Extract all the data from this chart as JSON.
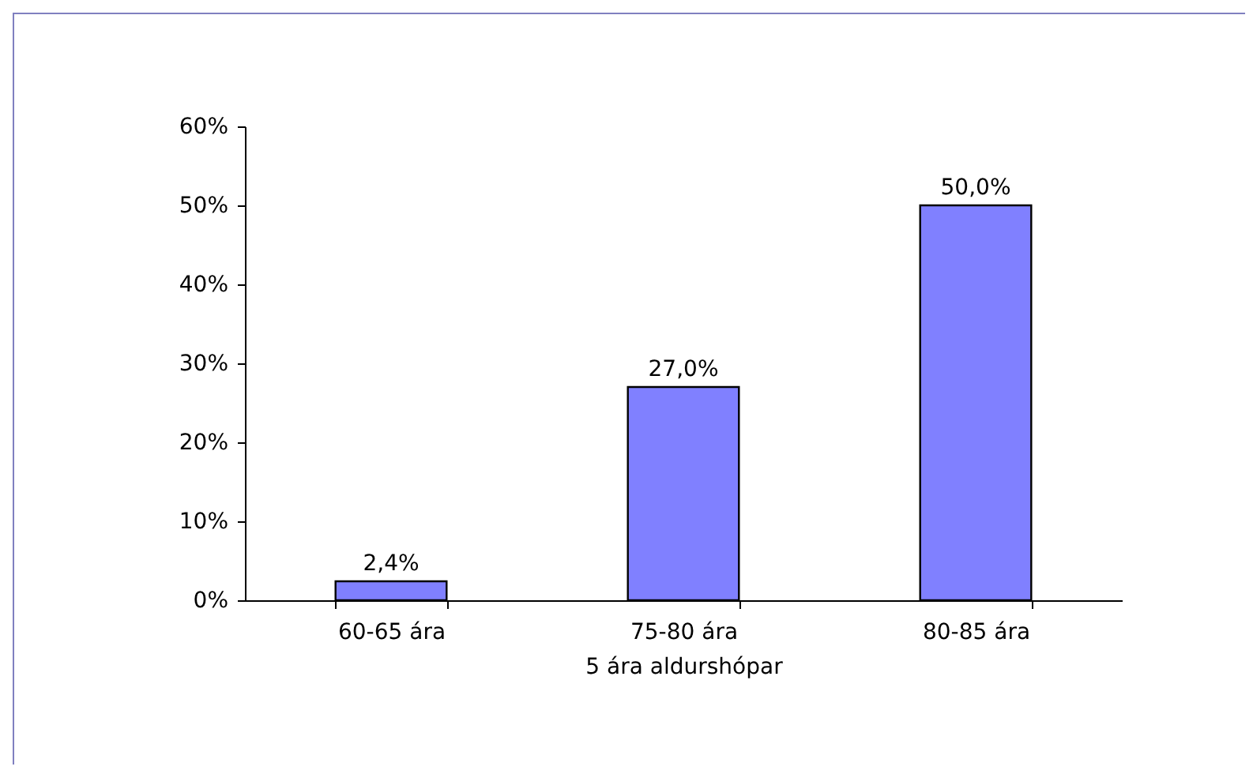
{
  "chart_data": {
    "type": "bar",
    "xlabel": "5 ára aldurshópar",
    "categories": [
      "60-65 ára",
      "75-80 ára",
      "80-85 ára"
    ],
    "series": [
      {
        "color": "#8080ff",
        "values": [
          2.4,
          27.0,
          50.0
        ],
        "value_labels": [
          "2,4%",
          "27,0%",
          "50,0%"
        ]
      }
    ],
    "ylim": [
      0,
      60
    ],
    "yticks": [
      {
        "value": 0,
        "label": "0%"
      },
      {
        "value": 10,
        "label": "10%"
      },
      {
        "value": 20,
        "label": "20%"
      },
      {
        "value": 30,
        "label": "30%"
      },
      {
        "value": 40,
        "label": "40%"
      },
      {
        "value": 50,
        "label": "50%"
      },
      {
        "value": 60,
        "label": "60%"
      }
    ],
    "grid": false
  }
}
